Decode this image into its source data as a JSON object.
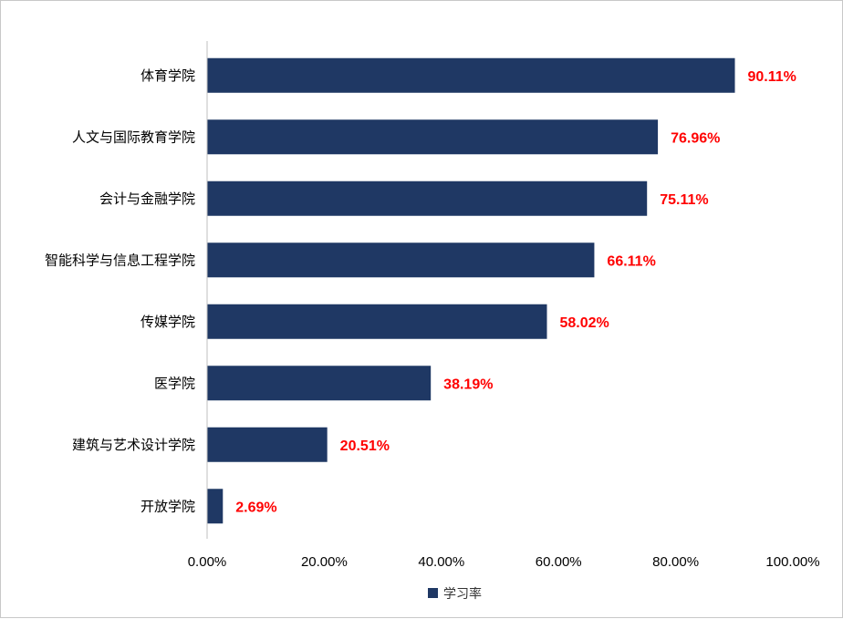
{
  "chart_data": {
    "type": "bar",
    "orientation": "horizontal",
    "categories": [
      "体育学院",
      "人文与国际教育学院",
      "会计与金融学院",
      "智能科学与信息工程学院",
      "传媒学院",
      "医学院",
      "建筑与艺术设计学院",
      "开放学院"
    ],
    "series": [
      {
        "name": "学习率",
        "values": [
          90.11,
          76.96,
          75.11,
          66.11,
          58.02,
          38.19,
          20.51,
          2.69
        ]
      }
    ],
    "data_labels": [
      "90.11%",
      "76.96%",
      "75.11%",
      "66.11%",
      "58.02%",
      "38.19%",
      "20.51%",
      "2.69%"
    ],
    "x_ticks": [
      "0.00%",
      "20.00%",
      "40.00%",
      "60.00%",
      "80.00%",
      "100.00%"
    ],
    "xlim": [
      0,
      100
    ],
    "grid": false,
    "legend_position": "bottom",
    "title": "",
    "xlabel": "",
    "ylabel": ""
  },
  "colors": {
    "bar": "#1f3864",
    "data_label": "#ff0000"
  }
}
